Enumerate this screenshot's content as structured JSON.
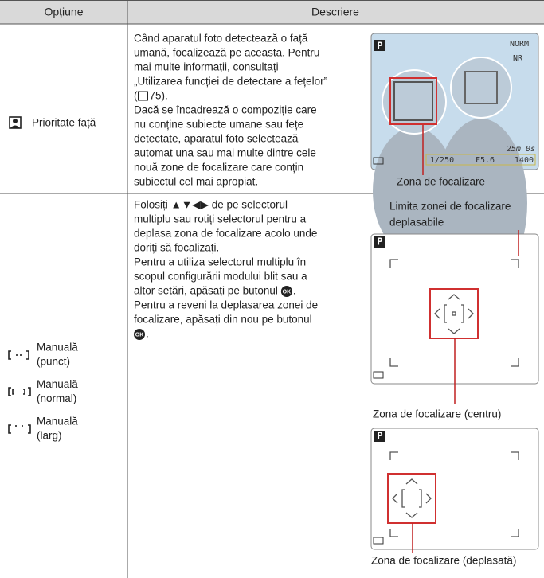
{
  "header": {
    "option": "Opțiune",
    "description": "Descriere"
  },
  "rows": [
    {
      "option": "Prioritate față",
      "description": [
        "Când aparatul foto detectează o față",
        "umană, focalizează pe aceasta. Pentru",
        "mai multe informații, consultați",
        "„Utilizarea funcției de detectare a fețelor”",
        {
          "before": "(",
          "after": "75)."
        },
        "Dacă se încadrează o compoziție care",
        "nu conține subiecte umane sau fețe",
        "detectate, aparatul foto selectează",
        "automat una sau mai multe dintre cele",
        "nouă zone de focalizare care conțin",
        "subiectul cel mai apropiat."
      ],
      "screen": {
        "mode": "P",
        "quality": "NORM",
        "nr": "NR",
        "time": "25m 0s",
        "shutter": "1/250",
        "aperture": "F5.6",
        "shots": "1400"
      },
      "caption": "Zona de focalizare"
    },
    {
      "options": [
        {
          "line1": "Manuală",
          "line2": "(punct)"
        },
        {
          "line1": "Manuală",
          "line2": "(normal)"
        },
        {
          "line1": "Manuală",
          "line2": "(larg)"
        }
      ],
      "description": [
        "Folosiți ▲▼◀▶ de pe selectorul",
        "multiplu sau rotiți selectorul pentru a",
        "deplasa zona de focalizare acolo unde",
        "doriți să focalizați.",
        "Pentru a utiliza selectorul multiplu în",
        "scopul configurării modului blit sau a",
        {
          "before": "altor setări, apăsați pe butonul",
          "after": "."
        },
        "Pentru a reveni la deplasarea zonei de",
        "focalizare, apăsați din nou pe butonul",
        {
          "after": "."
        }
      ],
      "ok_icon": "OK",
      "screens": [
        {
          "mode": "P",
          "caption_top": [
            "Limita zonei de focalizare",
            "deplasabile"
          ],
          "caption": "Zona de focalizare (centru)"
        },
        {
          "mode": "P",
          "caption": "Zona de focalizare (deplasată)"
        }
      ]
    }
  ]
}
